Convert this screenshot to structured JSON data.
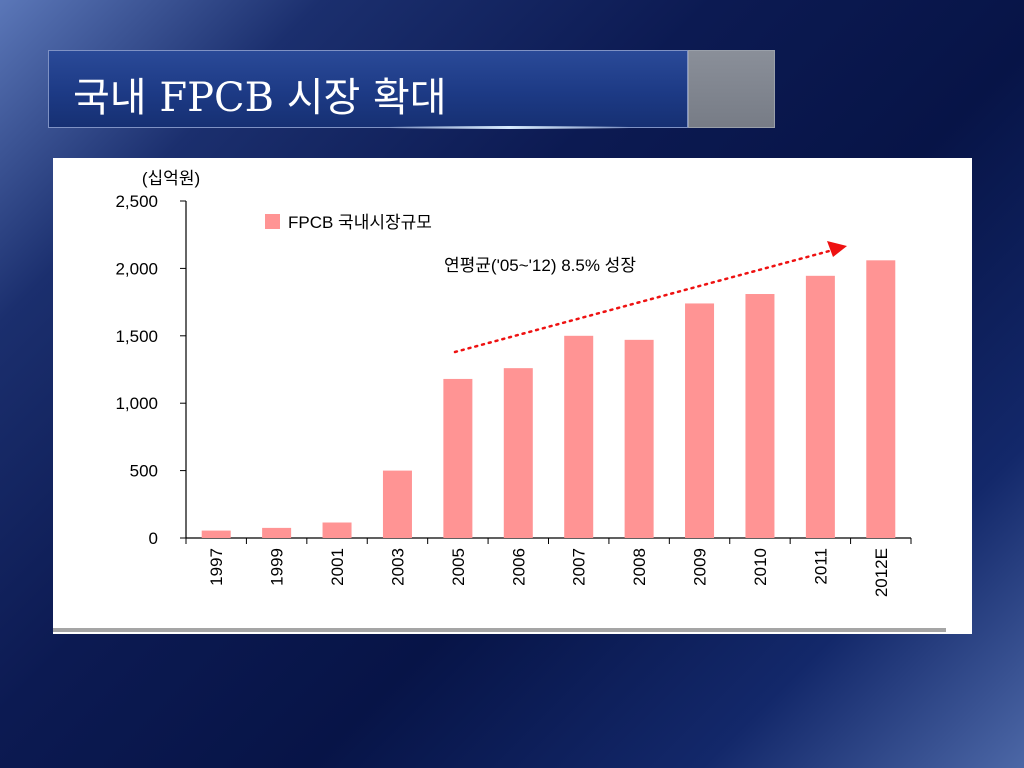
{
  "slide": {
    "title": "국내 FPCB 시장 확대"
  },
  "colors": {
    "bar": "#ff9494",
    "arrow": "#ee1111",
    "axis": "#000000"
  },
  "chart_data": {
    "type": "bar",
    "ylabel": "(십억원)",
    "ylim": [
      0,
      2500
    ],
    "yticks": [
      "0",
      "500",
      "1,000",
      "1,500",
      "2,000",
      "2,500"
    ],
    "grid": false,
    "legend_position": "top-left",
    "categories": [
      "1997",
      "1999",
      "2001",
      "2003",
      "2005",
      "2006",
      "2007",
      "2008",
      "2009",
      "2010",
      "2011",
      "2012E"
    ],
    "series": [
      {
        "name": "FPCB 국내시장규모",
        "values": [
          55,
          75,
          115,
          500,
          1180,
          1260,
          1500,
          1470,
          1740,
          1810,
          1945,
          2060
        ]
      }
    ],
    "annotation": "연평균('05~'12) 8.5% 성장"
  }
}
